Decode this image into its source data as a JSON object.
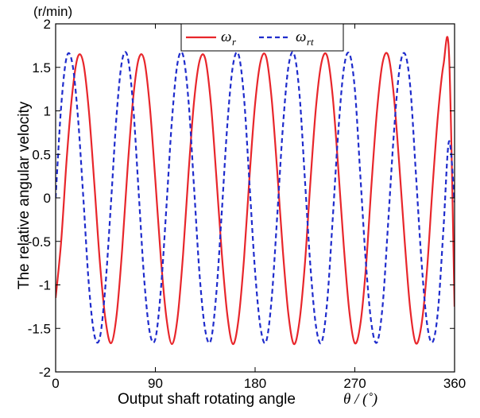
{
  "chart_data": {
    "type": "line",
    "title": "",
    "xlabel_text": "Output shaft rotating angle",
    "xlabel_symbol": "θ / (˚)",
    "ylabel": "The relative angular velocity",
    "y_unit": "(r/min)",
    "xlim": [
      0,
      360
    ],
    "ylim": [
      -2,
      2
    ],
    "x_ticks": [
      0,
      90,
      180,
      270,
      360
    ],
    "y_ticks": [
      -2,
      -1.5,
      -1,
      -0.5,
      0,
      0.5,
      1,
      1.5,
      2
    ],
    "grid": false,
    "legend_position": "top-center",
    "x": [
      0,
      5,
      10,
      15,
      20,
      25,
      30,
      35,
      40,
      45,
      50,
      55,
      60,
      65,
      70,
      75,
      80,
      85,
      90,
      95,
      100,
      105,
      110,
      115,
      120,
      125,
      130,
      135,
      140,
      145,
      150,
      155,
      160,
      165,
      170,
      175,
      180,
      185,
      190,
      195,
      200,
      205,
      210,
      215,
      220,
      225,
      230,
      235,
      240,
      245,
      250,
      255,
      260,
      265,
      270,
      275,
      280,
      285,
      290,
      295,
      300,
      305,
      310,
      315,
      320,
      325,
      330,
      335,
      340,
      345,
      350,
      355,
      360
    ],
    "series": [
      {
        "name_main": "ω",
        "name_sub": "r",
        "color": "#e8262b",
        "dash": "solid",
        "values": [
          -1.15,
          -0.5,
          0.45,
          1.2,
          1.62,
          1.55,
          1.0,
          0.15,
          -0.75,
          -1.4,
          -1.67,
          -1.35,
          -0.6,
          0.35,
          1.15,
          1.6,
          1.58,
          1.05,
          0.2,
          -0.7,
          -1.38,
          -1.68,
          -1.38,
          -0.65,
          0.3,
          1.12,
          1.58,
          1.6,
          1.1,
          0.25,
          -0.65,
          -1.35,
          -1.68,
          -1.4,
          -0.7,
          0.25,
          1.08,
          1.57,
          1.62,
          1.13,
          0.3,
          -0.6,
          -1.33,
          -1.68,
          -1.42,
          -0.75,
          0.2,
          1.05,
          1.56,
          1.63,
          1.17,
          0.35,
          -0.55,
          -1.3,
          -1.67,
          -1.45,
          -0.8,
          0.15,
          1.0,
          1.55,
          1.64,
          1.2,
          0.4,
          -0.5,
          -1.28,
          -1.67,
          -1.47,
          -0.85,
          0.1,
          0.95,
          1.53,
          1.65,
          -1.25
        ]
      },
      {
        "name_main": "ω",
        "name_sub": "rt",
        "color": "#1f2ccc",
        "dash": "dashed",
        "values": [
          0.0,
          1.05,
          1.62,
          1.55,
          0.95,
          0.0,
          -1.0,
          -1.58,
          -1.6,
          -1.0,
          -0.05,
          0.95,
          1.58,
          1.62,
          1.05,
          0.05,
          -0.95,
          -1.55,
          -1.62,
          -1.05,
          -0.1,
          0.9,
          1.55,
          1.64,
          1.1,
          0.1,
          -0.9,
          -1.52,
          -1.64,
          -1.1,
          -0.15,
          0.85,
          1.52,
          1.65,
          1.15,
          0.15,
          -0.85,
          -1.5,
          -1.65,
          -1.15,
          -0.2,
          0.8,
          1.5,
          1.66,
          1.2,
          0.2,
          -0.8,
          -1.48,
          -1.66,
          -1.2,
          -0.25,
          0.75,
          1.48,
          1.66,
          1.25,
          0.25,
          -0.75,
          -1.45,
          -1.66,
          -1.25,
          -0.3,
          0.7,
          1.45,
          1.66,
          1.28,
          0.3,
          -0.7,
          -1.43,
          -1.66,
          -1.3,
          -0.35,
          0.65,
          -0.05
        ]
      }
    ]
  }
}
